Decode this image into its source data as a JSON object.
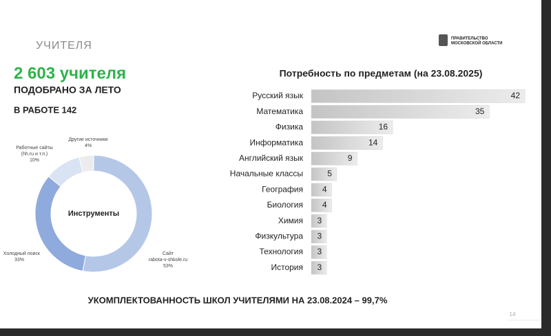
{
  "slide": {
    "section": "УЧИТЕЛЯ",
    "headline": "2 603 учителя",
    "subheadline": "ПОДОБРАНО ЗА ЛЕТО",
    "in_work": "В РАБОТЕ 142",
    "logo": [
      "ПРАВИТЕЛЬСТВО",
      "МОСКОВСКОЙ ОБЛАСТИ"
    ],
    "footer": "УКОМПЛЕКТОВАННОСТЬ ШКОЛ УЧИТЕЛЯМИ НА 23.08.2024 – 99,7%",
    "page": "14"
  },
  "chart_data": [
    {
      "type": "donut",
      "center_label": "Инструменты",
      "categories": [
        [
          "Сайт",
          "rabota-v-shkole.ru"
        ],
        [
          "Холодный поиск"
        ],
        [
          "Работные сайты",
          "(hh.ru и т.п.)"
        ],
        [
          "Другие источники"
        ]
      ],
      "values": [
        53,
        33,
        10,
        4
      ],
      "value_labels": [
        "53%",
        "33%",
        "10%",
        "4%"
      ],
      "colors": [
        "#b4c7e7",
        "#8faadc",
        "#dae3f3",
        "#ececec"
      ]
    },
    {
      "type": "bar",
      "orientation": "horizontal",
      "title": "Потребность по предметам (на 23.08.2025)",
      "categories": [
        "Русский язык",
        "Математика",
        "Физика",
        "Информатика",
        "Английский язык",
        "Начальные классы",
        "География",
        "Биология",
        "Химия",
        "Физкультура",
        "Технология",
        "История"
      ],
      "values": [
        42,
        35,
        16,
        14,
        9,
        5,
        4,
        4,
        3,
        3,
        3,
        3
      ],
      "color": "#d4d4d4"
    }
  ]
}
